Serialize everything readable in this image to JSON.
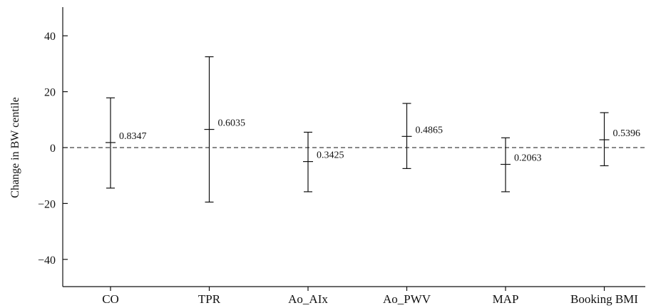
{
  "chart_data": {
    "type": "error-bar",
    "title": "",
    "xlabel": "",
    "ylabel": "Change in BW centile",
    "ylim": [
      -50,
      50
    ],
    "yticks": [
      40,
      20,
      0,
      -20,
      -40
    ],
    "ytick_labels": [
      "40",
      "20",
      "0",
      "−20",
      "−40"
    ],
    "reference_line": 0,
    "categories": [
      "CO",
      "TPR",
      "Ao_AIx",
      "Ao_PWV",
      "MAP",
      "Booking BMI"
    ],
    "estimates": [
      1.8,
      6.5,
      -5.0,
      4.0,
      -6.0,
      2.8
    ],
    "lower": [
      -14.5,
      -19.5,
      -15.8,
      -7.5,
      -15.8,
      -6.5
    ],
    "upper": [
      17.8,
      32.5,
      5.5,
      15.8,
      3.5,
      12.5
    ],
    "p_values": [
      "0.8347",
      "0.6035",
      "0.3425",
      "0.4865",
      "0.2063",
      "0.5396"
    ],
    "grid": false,
    "legend": "none"
  }
}
